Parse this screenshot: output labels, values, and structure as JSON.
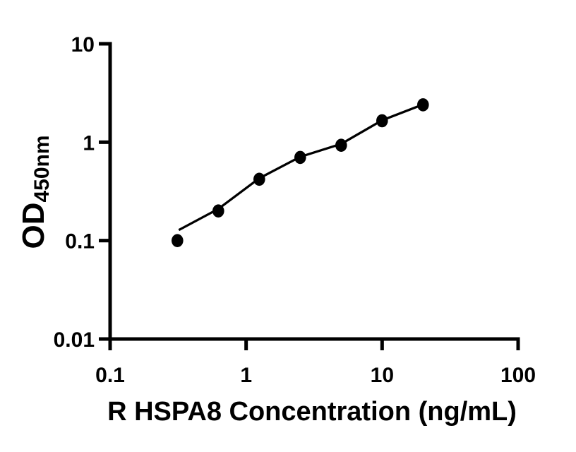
{
  "figure": {
    "background_color": "#ffffff",
    "axis_color": "#000000",
    "marker_color": "#000000",
    "line_color": "#000000"
  },
  "chart_data": {
    "type": "scatter",
    "title": "",
    "xlabel": "R HSPA8 Concentration (ng/mL)",
    "ylabel": "OD450nm",
    "ylabel_main": "OD",
    "ylabel_sub": "450nm",
    "x_scale": "log",
    "y_scale": "log",
    "xlim": [
      0.1,
      100
    ],
    "ylim": [
      0.01,
      10
    ],
    "x_ticks": [
      0.1,
      1,
      10,
      100
    ],
    "x_tick_labels": [
      "0.1",
      "1",
      "10",
      "100"
    ],
    "y_ticks": [
      10,
      1,
      0.1,
      0.01
    ],
    "y_tick_labels": [
      "10",
      "1",
      "0.1",
      "0.01"
    ],
    "grid": false,
    "legend": null,
    "points": [
      {
        "x": 0.3125,
        "y": 0.1
      },
      {
        "x": 0.625,
        "y": 0.2
      },
      {
        "x": 1.25,
        "y": 0.42
      },
      {
        "x": 2.5,
        "y": 0.7
      },
      {
        "x": 5,
        "y": 0.93
      },
      {
        "x": 10,
        "y": 1.65
      },
      {
        "x": 20,
        "y": 2.4
      }
    ],
    "fit_line": [
      {
        "x": 0.32,
        "y": 0.128
      },
      {
        "x": 0.625,
        "y": 0.21
      },
      {
        "x": 1.25,
        "y": 0.43
      },
      {
        "x": 2.5,
        "y": 0.71
      },
      {
        "x": 5,
        "y": 0.96
      },
      {
        "x": 10,
        "y": 1.67
      },
      {
        "x": 20,
        "y": 2.42
      }
    ]
  }
}
